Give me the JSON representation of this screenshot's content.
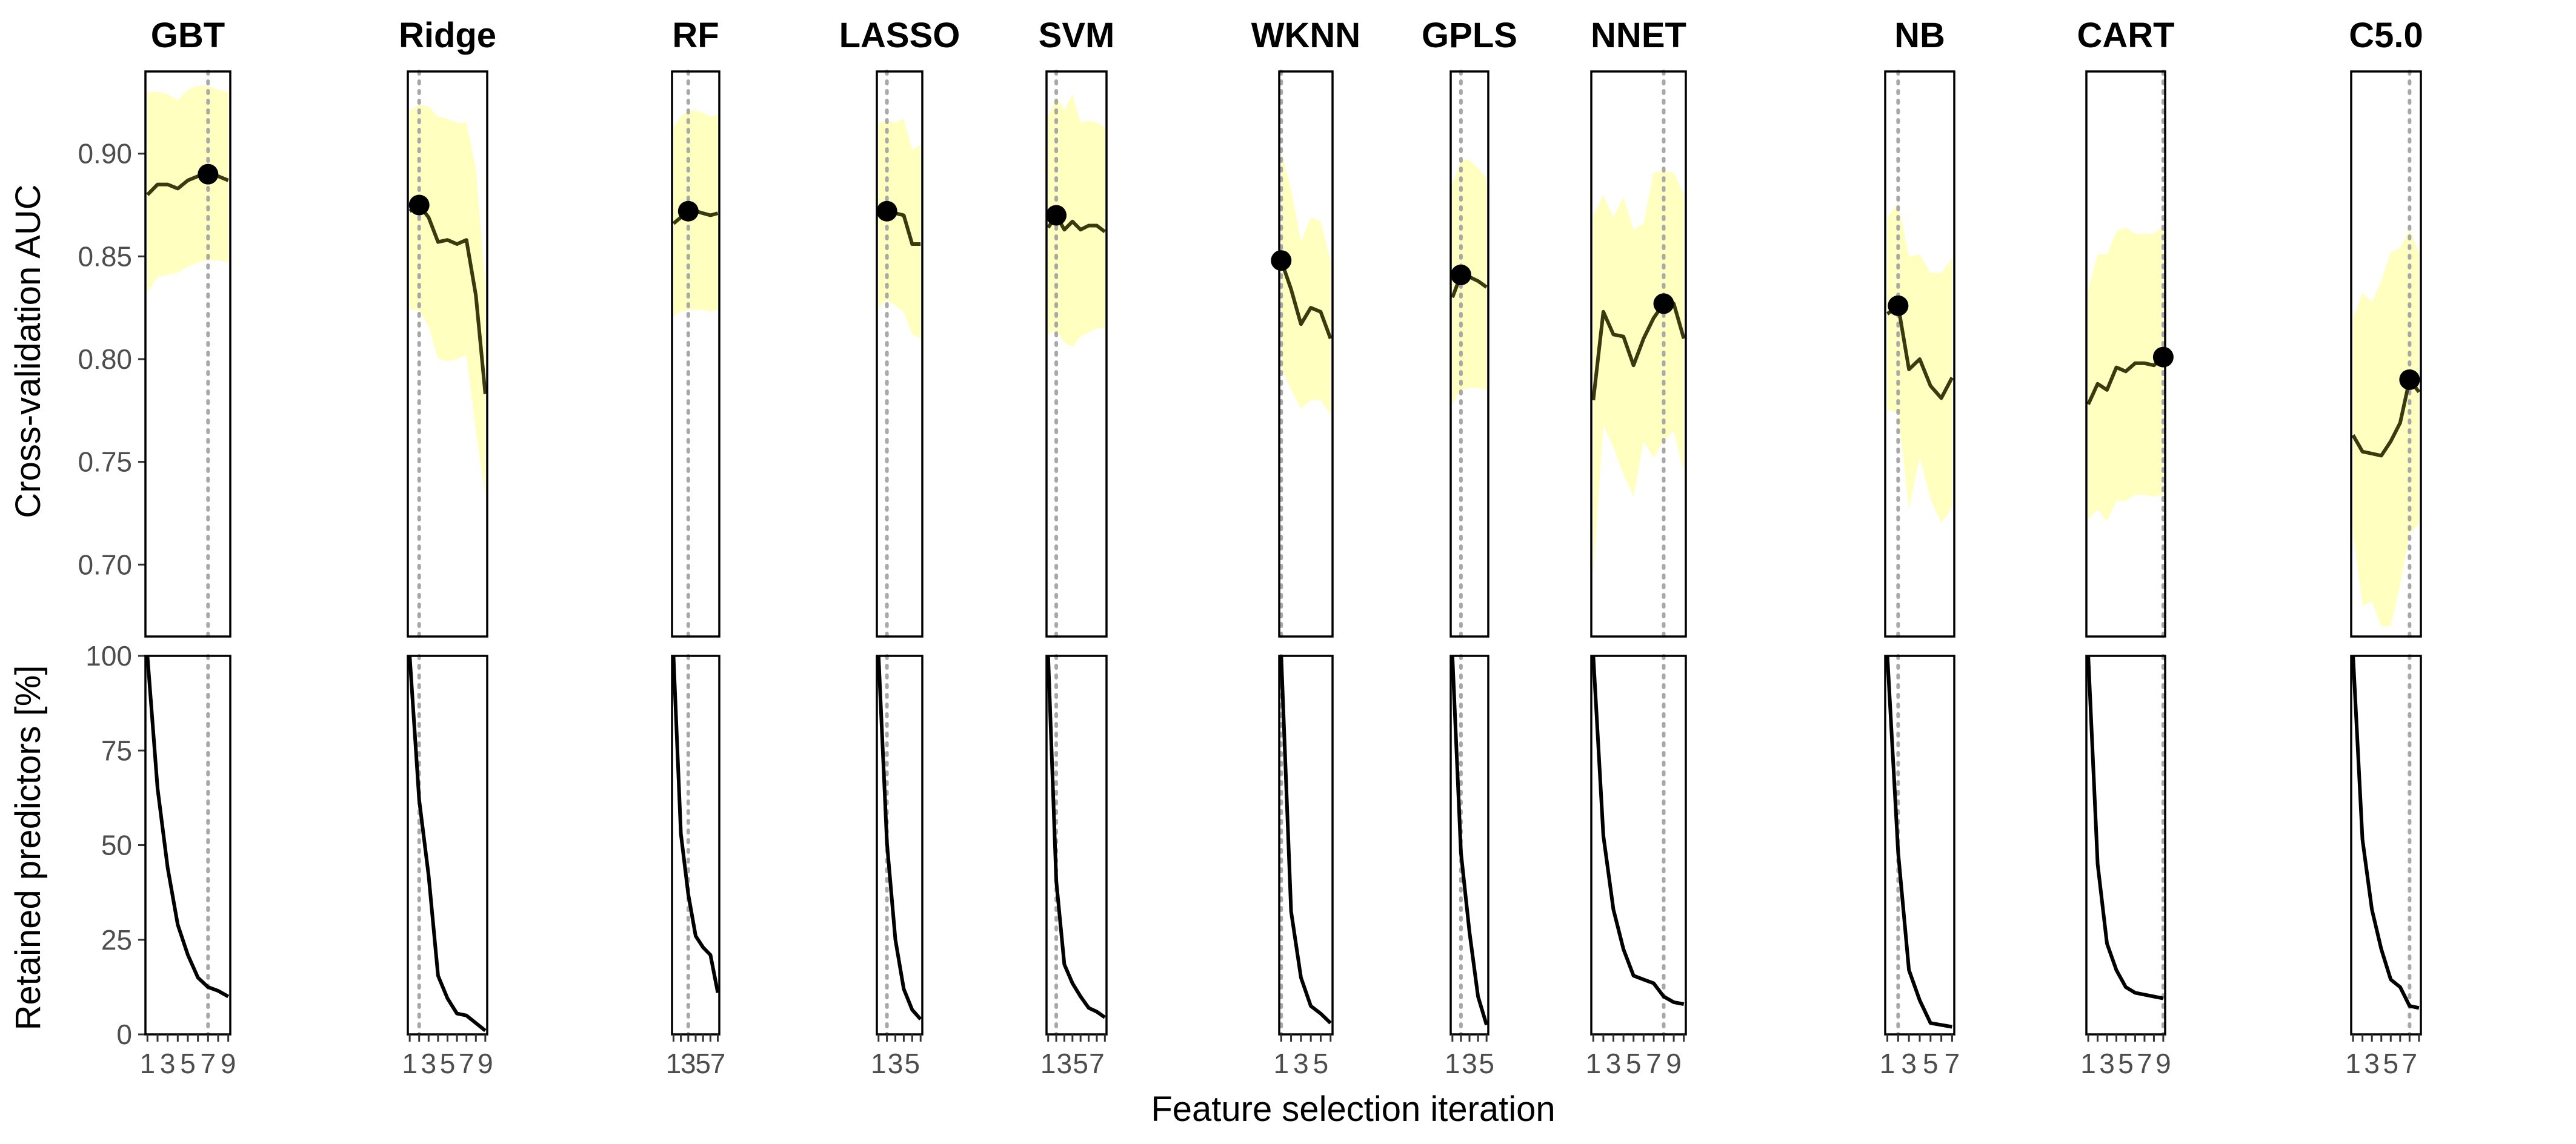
{
  "chart_data": {
    "type": "line",
    "x_label": "Feature selection iteration",
    "top_y_label": "Cross-validation AUC",
    "bottom_y_label": "Retained predictors [%]",
    "top_ylim": [
      0.665,
      0.94
    ],
    "top_yticks": [
      0.7,
      0.75,
      0.8,
      0.85,
      0.9
    ],
    "top_ytick_labels": [
      "0.70",
      "0.75",
      "0.80",
      "0.85",
      "0.90"
    ],
    "bottom_ylim": [
      0,
      100
    ],
    "bottom_yticks": [
      0,
      25,
      50,
      75,
      100
    ],
    "bottom_ytick_labels": [
      "0",
      "25",
      "50",
      "75",
      "100"
    ],
    "colors": {
      "ribbon": "#ffffc0",
      "line": "#3a3a10",
      "retained_line": "#000000",
      "best_point": "#000000",
      "vline": "#a8a8a8",
      "frame": "#000000"
    },
    "grid": false,
    "panels": [
      {
        "model": "GBT",
        "x": [
          1,
          2,
          3,
          4,
          5,
          6,
          7,
          8,
          9
        ],
        "xlim": [
          0.8,
          9.2
        ],
        "xticks": [
          1,
          3,
          5,
          7,
          9
        ],
        "best_iteration": 7,
        "auc": [
          0.88,
          0.885,
          0.885,
          0.883,
          0.887,
          0.889,
          0.89,
          0.889,
          0.887
        ],
        "auc_lower": [
          0.832,
          0.84,
          0.841,
          0.842,
          0.845,
          0.847,
          0.848,
          0.848,
          0.847
        ],
        "auc_upper": [
          0.93,
          0.93,
          0.929,
          0.926,
          0.931,
          0.933,
          0.933,
          0.931,
          0.93
        ],
        "retained_pct": [
          100,
          65,
          44,
          29,
          21,
          15,
          12.5,
          11.5,
          10
        ]
      },
      {
        "model": "Ridge",
        "x": [
          1,
          2,
          3,
          4,
          5,
          6,
          7,
          8,
          9
        ],
        "xlim": [
          0.8,
          9.2
        ],
        "xticks": [
          1,
          3,
          5,
          7,
          9
        ],
        "best_iteration": 2,
        "auc": [
          0.872,
          0.875,
          0.869,
          0.857,
          0.858,
          0.856,
          0.858,
          0.831,
          0.783
        ],
        "auc_lower": [
          0.824,
          0.824,
          0.816,
          0.8,
          0.799,
          0.8,
          0.802,
          0.765,
          0.733
        ],
        "auc_upper": [
          0.921,
          0.924,
          0.923,
          0.918,
          0.917,
          0.915,
          0.915,
          0.893,
          0.836
        ],
        "retained_pct": [
          100,
          62,
          42,
          15.5,
          9.5,
          5.5,
          5,
          3,
          1
        ]
      },
      {
        "model": "RF",
        "x": [
          1,
          2,
          3,
          4,
          5,
          6,
          7
        ],
        "xlim": [
          0.8,
          7.2
        ],
        "xticks": [
          1,
          3,
          5,
          7
        ],
        "best_iteration": 3,
        "auc": [
          0.866,
          0.869,
          0.872,
          0.872,
          0.871,
          0.87,
          0.871
        ],
        "auc_lower": [
          0.821,
          0.823,
          0.824,
          0.824,
          0.824,
          0.823,
          0.824
        ],
        "auc_upper": [
          0.913,
          0.918,
          0.921,
          0.921,
          0.92,
          0.918,
          0.919
        ],
        "retained_pct": [
          100,
          53,
          37,
          26,
          23,
          21,
          11
        ]
      },
      {
        "model": "LASSO",
        "x": [
          1,
          2,
          3,
          4,
          5,
          6
        ],
        "xlim": [
          0.8,
          6.2
        ],
        "xticks": [
          1,
          3,
          5
        ],
        "best_iteration": 2,
        "auc": [
          0.87,
          0.872,
          0.871,
          0.87,
          0.856,
          0.856
        ],
        "auc_lower": [
          0.825,
          0.829,
          0.826,
          0.823,
          0.812,
          0.81
        ],
        "auc_upper": [
          0.915,
          0.916,
          0.915,
          0.917,
          0.902,
          0.904
        ],
        "retained_pct": [
          100,
          50.5,
          25,
          12,
          6.5,
          4
        ]
      },
      {
        "model": "SVM",
        "x": [
          1,
          2,
          3,
          4,
          5,
          6,
          7,
          8
        ],
        "xlim": [
          0.8,
          8.2
        ],
        "xticks": [
          1,
          3,
          5,
          7
        ],
        "best_iteration": 2,
        "auc": [
          0.864,
          0.87,
          0.863,
          0.867,
          0.863,
          0.865,
          0.865,
          0.862
        ],
        "auc_lower": [
          0.812,
          0.814,
          0.808,
          0.806,
          0.811,
          0.813,
          0.815,
          0.815
        ],
        "auc_upper": [
          0.918,
          0.928,
          0.921,
          0.929,
          0.915,
          0.916,
          0.915,
          0.913
        ],
        "retained_pct": [
          100,
          40.5,
          18.5,
          13.5,
          10,
          7,
          6,
          4.5
        ]
      },
      {
        "model": "WKNN",
        "x": [
          1,
          2,
          3,
          4,
          5,
          6
        ],
        "xlim": [
          0.8,
          6.2
        ],
        "xticks": [
          1,
          3,
          5
        ],
        "best_iteration": 1,
        "auc": [
          0.848,
          0.834,
          0.817,
          0.825,
          0.823,
          0.81
        ],
        "auc_lower": [
          0.796,
          0.785,
          0.776,
          0.78,
          0.78,
          0.773
        ],
        "auc_upper": [
          0.901,
          0.883,
          0.857,
          0.869,
          0.867,
          0.848
        ],
        "retained_pct": [
          100,
          32.5,
          15,
          7.5,
          5.5,
          3
        ]
      },
      {
        "model": "GPLS",
        "x": [
          1,
          2,
          3,
          4,
          5
        ],
        "xlim": [
          0.8,
          5.2
        ],
        "xticks": [
          1,
          3,
          5
        ],
        "best_iteration": 2,
        "auc": [
          0.83,
          0.841,
          0.84,
          0.838,
          0.835
        ],
        "auc_lower": [
          0.778,
          0.785,
          0.786,
          0.786,
          0.785
        ],
        "auc_upper": [
          0.885,
          0.897,
          0.897,
          0.893,
          0.888
        ],
        "retained_pct": [
          100,
          48,
          27,
          10,
          2.5
        ]
      },
      {
        "model": "NNET",
        "x": [
          1,
          2,
          3,
          4,
          5,
          6,
          7,
          8,
          9,
          10
        ],
        "xlim": [
          0.8,
          10.2
        ],
        "xticks": [
          1,
          3,
          5,
          7,
          9
        ],
        "best_iteration": 8,
        "auc": [
          0.78,
          0.823,
          0.812,
          0.811,
          0.797,
          0.81,
          0.82,
          0.827,
          0.827,
          0.81
        ],
        "auc_lower": [
          0.695,
          0.768,
          0.757,
          0.744,
          0.733,
          0.76,
          0.752,
          0.76,
          0.765,
          0.745
        ],
        "auc_upper": [
          0.87,
          0.88,
          0.869,
          0.879,
          0.863,
          0.866,
          0.891,
          0.891,
          0.891,
          0.88
        ],
        "retained_pct": [
          100,
          52.5,
          33,
          22.5,
          15.5,
          14.5,
          13.5,
          10,
          8.5,
          8
        ]
      },
      {
        "model": "NB",
        "x": [
          1,
          2,
          3,
          4,
          5,
          6,
          7
        ],
        "xlim": [
          0.8,
          7.2
        ],
        "xticks": [
          1,
          3,
          5,
          7
        ],
        "best_iteration": 2,
        "auc": [
          0.822,
          0.826,
          0.795,
          0.8,
          0.787,
          0.781,
          0.791
        ],
        "auc_lower": [
          0.775,
          0.774,
          0.727,
          0.752,
          0.732,
          0.72,
          0.728
        ],
        "auc_upper": [
          0.869,
          0.876,
          0.85,
          0.851,
          0.842,
          0.842,
          0.849
        ],
        "retained_pct": [
          100,
          48,
          17,
          9,
          3,
          2.5,
          2
        ]
      },
      {
        "model": "CART",
        "x": [
          1,
          2,
          3,
          4,
          5,
          6,
          7,
          8,
          9
        ],
        "xlim": [
          0.8,
          9.2
        ],
        "xticks": [
          1,
          3,
          5,
          7,
          9
        ],
        "best_iteration": 9,
        "auc": [
          0.778,
          0.788,
          0.785,
          0.796,
          0.794,
          0.798,
          0.798,
          0.797,
          0.801
        ],
        "auc_lower": [
          0.722,
          0.727,
          0.721,
          0.731,
          0.731,
          0.734,
          0.734,
          0.733,
          0.734
        ],
        "auc_upper": [
          0.834,
          0.851,
          0.851,
          0.862,
          0.864,
          0.861,
          0.861,
          0.861,
          0.865
        ],
        "retained_pct": [
          100,
          45,
          24,
          17,
          12.5,
          11,
          10.5,
          10,
          9.5
        ]
      },
      {
        "model": "C5.0",
        "x": [
          1,
          2,
          3,
          4,
          5,
          6,
          7,
          8
        ],
        "xlim": [
          0.8,
          8.2
        ],
        "xticks": [
          1,
          3,
          5,
          7
        ],
        "best_iteration": 7,
        "auc": [
          0.763,
          0.755,
          0.754,
          0.753,
          0.76,
          0.769,
          0.79,
          0.784
        ],
        "auc_lower": [
          0.716,
          0.68,
          0.682,
          0.67,
          0.67,
          0.69,
          0.715,
          0.72
        ],
        "auc_upper": [
          0.82,
          0.832,
          0.828,
          0.838,
          0.852,
          0.854,
          0.863,
          0.852
        ],
        "retained_pct": [
          100,
          51.5,
          33,
          22.5,
          14.5,
          12.5,
          7.5,
          7
        ]
      }
    ]
  }
}
